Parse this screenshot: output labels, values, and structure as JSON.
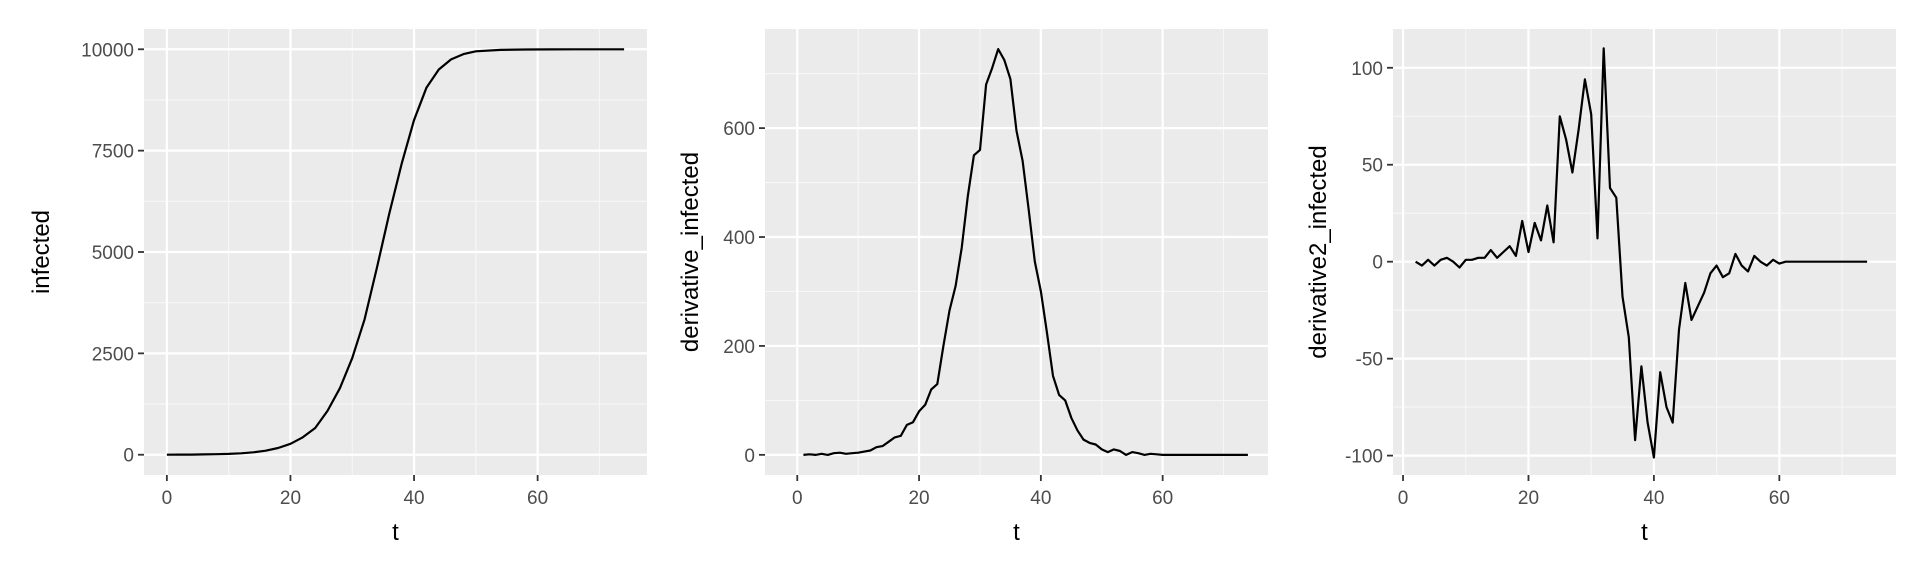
{
  "chart_data": [
    {
      "type": "line",
      "xlabel": "t",
      "ylabel": "infected",
      "xlim": [
        -3.7,
        77.7
      ],
      "ylim": [
        -500,
        10500
      ],
      "xticks": [
        0,
        20,
        40,
        60
      ],
      "xtick_labels": [
        "0",
        "20",
        "40",
        "60"
      ],
      "yticks": [
        0,
        2500,
        5000,
        7500,
        10000
      ],
      "ytick_labels": [
        "0",
        "2500",
        "5000",
        "7500",
        "10000"
      ],
      "grid": true,
      "legend": "none",
      "series": [
        {
          "x": [
            0,
            2,
            4,
            6,
            8,
            10,
            12,
            14,
            16,
            18,
            20,
            22,
            24,
            26,
            28,
            30,
            32,
            34,
            36,
            38,
            40,
            42,
            44,
            46,
            48,
            50,
            54,
            58,
            62,
            66,
            70,
            74
          ],
          "y": [
            0,
            2,
            4,
            7,
            12,
            20,
            35,
            60,
            100,
            165,
            270,
            430,
            660,
            1080,
            1640,
            2380,
            3340,
            4620,
            5950,
            7180,
            8250,
            9050,
            9500,
            9750,
            9880,
            9950,
            9985,
            9995,
            9998,
            10000,
            10000,
            10000
          ]
        }
      ]
    },
    {
      "type": "line",
      "xlabel": "t",
      "ylabel": "derivative_infected",
      "xlim": [
        -5.3,
        77.3
      ],
      "ylim": [
        -37,
        782
      ],
      "xticks": [
        0,
        20,
        40,
        60
      ],
      "xtick_labels": [
        "0",
        "20",
        "40",
        "60"
      ],
      "yticks": [
        0,
        200,
        400,
        600
      ],
      "ytick_labels": [
        "0",
        "200",
        "400",
        "600"
      ],
      "grid": true,
      "legend": "none",
      "series": [
        {
          "x": [
            1,
            2,
            3,
            4,
            5,
            6,
            7,
            8,
            9,
            10,
            11,
            12,
            13,
            14,
            15,
            16,
            17,
            18,
            19,
            20,
            21,
            22,
            23,
            24,
            25,
            26,
            27,
            28,
            29,
            30,
            31,
            32,
            33,
            34,
            35,
            36,
            37,
            38,
            39,
            40,
            41,
            42,
            43,
            44,
            45,
            46,
            47,
            48,
            49,
            50,
            51,
            52,
            53,
            54,
            55,
            56,
            57,
            58,
            59,
            60,
            62,
            64,
            66,
            68,
            70,
            72,
            74
          ],
          "y": [
            0,
            1,
            0,
            2,
            0,
            3,
            4,
            2,
            3,
            4,
            6,
            8,
            14,
            16,
            24,
            32,
            35,
            55,
            60,
            80,
            92,
            120,
            130,
            200,
            265,
            310,
            380,
            475,
            550,
            560,
            680,
            710,
            745,
            725,
            690,
            595,
            540,
            450,
            355,
            300,
            225,
            145,
            110,
            100,
            68,
            45,
            28,
            22,
            19,
            10,
            5,
            10,
            7,
            0,
            5,
            3,
            0,
            2,
            1,
            0,
            0,
            0,
            0,
            0,
            0,
            0,
            0
          ]
        }
      ]
    },
    {
      "type": "line",
      "xlabel": "t",
      "ylabel": "derivative2_infected",
      "xlim": [
        -1.6,
        78.6
      ],
      "ylim": [
        -110,
        120
      ],
      "xticks": [
        0,
        20,
        40,
        60
      ],
      "xtick_labels": [
        "0",
        "20",
        "40",
        "60"
      ],
      "yticks": [
        -100,
        -50,
        0,
        50,
        100
      ],
      "ytick_labels": [
        "-100",
        "-50",
        "0",
        "50",
        "100"
      ],
      "grid": true,
      "legend": "none",
      "series": [
        {
          "x": [
            2,
            3,
            4,
            5,
            6,
            7,
            8,
            9,
            10,
            11,
            12,
            13,
            14,
            15,
            16,
            17,
            18,
            19,
            20,
            21,
            22,
            23,
            24,
            25,
            26,
            27,
            28,
            29,
            30,
            31,
            32,
            33,
            34,
            35,
            36,
            37,
            38,
            39,
            40,
            41,
            42,
            43,
            44,
            45,
            46,
            47,
            48,
            49,
            50,
            51,
            52,
            53,
            54,
            55,
            56,
            57,
            58,
            59,
            60,
            61,
            62,
            64,
            66,
            68,
            70,
            72,
            74
          ],
          "y": [
            0,
            -2,
            1,
            -2,
            1,
            2,
            0,
            -3,
            1,
            1,
            2,
            2,
            6,
            2,
            5,
            8,
            3,
            21,
            5,
            20,
            11,
            29,
            10,
            75,
            63,
            46,
            68,
            94,
            76,
            12,
            110,
            38,
            33,
            -18,
            -39,
            -92,
            -54,
            -83,
            -101,
            -57,
            -75,
            -83,
            -35,
            -11,
            -30,
            -23,
            -16,
            -6,
            -2,
            -8,
            -6,
            4,
            -2,
            -5,
            3,
            0,
            -2,
            1,
            -1,
            0,
            0,
            0,
            0,
            0,
            0,
            0,
            0
          ]
        }
      ]
    }
  ]
}
